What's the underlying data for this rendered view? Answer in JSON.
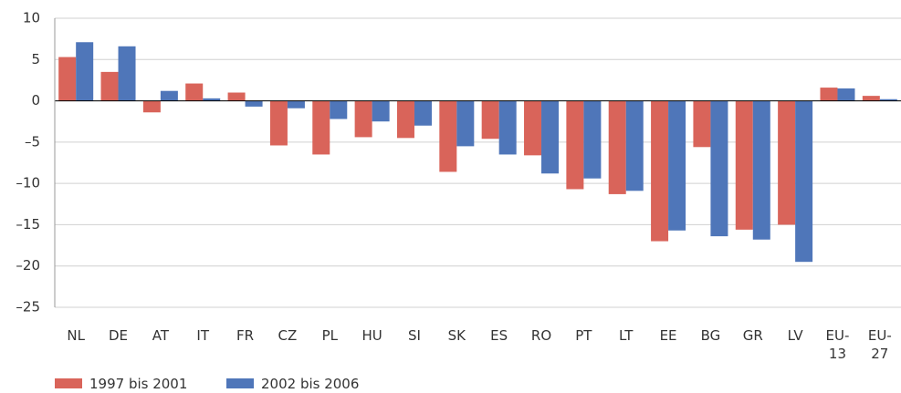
{
  "chart_data": {
    "type": "bar",
    "categories": [
      "NL",
      "DE",
      "AT",
      "IT",
      "FR",
      "CZ",
      "PL",
      "HU",
      "SI",
      "SK",
      "ES",
      "RO",
      "PT",
      "LT",
      "EE",
      "BG",
      "GR",
      "LV",
      "EU-13",
      "EU-27"
    ],
    "series": [
      {
        "name": "1997 bis 2001",
        "color": "#d9645a",
        "values": [
          5.3,
          3.5,
          -1.4,
          2.1,
          1.0,
          -5.4,
          -6.5,
          -4.4,
          -4.5,
          -8.6,
          -4.6,
          -6.6,
          -10.7,
          -11.3,
          -17.0,
          -5.6,
          -15.6,
          -15.0,
          1.6,
          0.6
        ]
      },
      {
        "name": "2002 bis 2006",
        "color": "#4f76b9",
        "values": [
          7.1,
          6.6,
          1.2,
          0.3,
          -0.7,
          -0.9,
          -2.2,
          -2.5,
          -3.0,
          -5.5,
          -6.5,
          -8.8,
          -9.4,
          -10.9,
          -15.7,
          -16.4,
          -16.8,
          -19.5,
          1.5,
          0.2
        ]
      }
    ],
    "ylim": [
      -25,
      10
    ],
    "yticks": [
      {
        "value": -25,
        "label": "–25"
      },
      {
        "value": -20,
        "label": "–20"
      },
      {
        "value": -15,
        "label": "–15"
      },
      {
        "value": -10,
        "label": "–10"
      },
      {
        "value": -5,
        "label": "–5"
      },
      0,
      5,
      10
    ],
    "grid": true
  }
}
